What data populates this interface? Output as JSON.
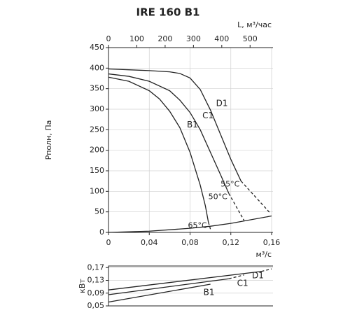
{
  "chart_data": [
    {
      "type": "line",
      "title": "IRE 160 B1",
      "xlabel": "м³/с",
      "ylabel": "Pполн, Па",
      "x2label": "L, м³/час",
      "xlim": [
        0,
        0.16
      ],
      "xticks": [
        0,
        {
          "value": 0.04,
          "label": "0,04"
        },
        {
          "value": 0.08,
          "label": "0,08"
        },
        {
          "value": 0.12,
          "label": "0,12"
        },
        {
          "value": 0.16,
          "label": "0,16"
        }
      ],
      "x2lim": [
        0,
        576
      ],
      "x2ticks": [
        0,
        100,
        200,
        300,
        400,
        500
      ],
      "ylim": [
        0,
        450
      ],
      "yticks": [
        0,
        50,
        100,
        150,
        200,
        250,
        300,
        350,
        400,
        450
      ],
      "grid": true,
      "series": [
        {
          "name": "D1",
          "color": "#222222",
          "annotation": "55°C",
          "dashed_from": 10,
          "x": [
            0,
            0.02,
            0.04,
            0.06,
            0.07,
            0.08,
            0.09,
            0.1,
            0.11,
            0.12,
            0.13,
            0.159
          ],
          "values": [
            398,
            396,
            394,
            391,
            387,
            376,
            348,
            298,
            238,
            178,
            125,
            46
          ]
        },
        {
          "name": "C1",
          "color": "#222222",
          "annotation": "50°C",
          "dashed_from": 9,
          "x": [
            0,
            0.02,
            0.04,
            0.06,
            0.07,
            0.08,
            0.09,
            0.1,
            0.11,
            0.118,
            0.133
          ],
          "values": [
            386,
            380,
            368,
            345,
            322,
            292,
            250,
            195,
            140,
            95,
            29
          ]
        },
        {
          "name": "B1",
          "color": "#222222",
          "annotation": "65°C",
          "dashed_from": 9,
          "x": [
            0,
            0.02,
            0.04,
            0.05,
            0.06,
            0.07,
            0.08,
            0.09,
            0.095,
            0.098,
            0.1
          ],
          "values": [
            378,
            368,
            345,
            325,
            295,
            255,
            195,
            115,
            65,
            25,
            8
          ]
        },
        {
          "color": "#222222",
          "x": [
            0,
            0.04,
            0.08,
            0.1,
            0.12,
            0.16
          ],
          "values": [
            0,
            3,
            10,
            15,
            22,
            40
          ]
        }
      ]
    },
    {
      "type": "line",
      "ylabel": "кВт",
      "xlim": [
        0,
        0.16
      ],
      "ylim": [
        0.05,
        0.175
      ],
      "yticks": [
        {
          "value": 0.05,
          "label": "0,05"
        },
        {
          "value": 0.09,
          "label": "0,09"
        },
        {
          "value": 0.13,
          "label": "0,13"
        },
        {
          "value": 0.17,
          "label": "0,17"
        }
      ],
      "grid": true,
      "series": [
        {
          "name": "D1",
          "color": "#222222",
          "dashed_from": 1,
          "x": [
            0,
            0.15,
            0.16
          ],
          "values": [
            0.1,
            0.158,
            0.166
          ]
        },
        {
          "name": "C1",
          "color": "#222222",
          "dashed_from": 1,
          "x": [
            0,
            0.118,
            0.133
          ],
          "values": [
            0.085,
            0.135,
            0.147
          ]
        },
        {
          "name": "B1",
          "color": "#222222",
          "x": [
            0,
            0.1
          ],
          "values": [
            0.062,
            0.118
          ]
        }
      ]
    }
  ]
}
